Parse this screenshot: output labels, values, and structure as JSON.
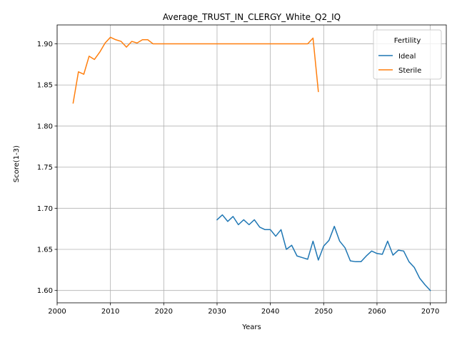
{
  "chart_data": {
    "type": "line",
    "title": "Average_TRUST_IN_CLERGY_White_Q2_IQ",
    "xlabel": "Years",
    "ylabel": "Score(1-3)",
    "xlim": [
      2000,
      2073
    ],
    "ylim": [
      1.585,
      1.923
    ],
    "x_ticks": [
      2000,
      2010,
      2020,
      2030,
      2040,
      2050,
      2060,
      2070
    ],
    "x_tick_labels": [
      "2000",
      "2010",
      "2020",
      "2030",
      "2040",
      "2050",
      "2060",
      "2070"
    ],
    "y_ticks": [
      1.6,
      1.65,
      1.7,
      1.75,
      1.8,
      1.85,
      1.9
    ],
    "y_tick_labels": [
      "1.60",
      "1.65",
      "1.70",
      "1.75",
      "1.80",
      "1.85",
      "1.90"
    ],
    "grid": true,
    "legend": {
      "title": "Fertility",
      "placement": "top-right"
    },
    "series": [
      {
        "name": "Ideal",
        "color": "#1f77b4",
        "x": [
          2030,
          2031,
          2032,
          2033,
          2034,
          2035,
          2036,
          2037,
          2038,
          2039,
          2040,
          2041,
          2042,
          2043,
          2044,
          2045,
          2046,
          2047,
          2048,
          2049,
          2050,
          2051,
          2052,
          2053,
          2054,
          2055,
          2056,
          2057,
          2058,
          2059,
          2060,
          2061,
          2062,
          2063,
          2064,
          2065,
          2066,
          2067,
          2068,
          2069,
          2070
        ],
        "values": [
          1.686,
          1.692,
          1.684,
          1.69,
          1.68,
          1.686,
          1.68,
          1.686,
          1.677,
          1.674,
          1.674,
          1.666,
          1.674,
          1.65,
          1.655,
          1.642,
          1.64,
          1.638,
          1.66,
          1.637,
          1.654,
          1.661,
          1.678,
          1.66,
          1.652,
          1.636,
          1.635,
          1.635,
          1.642,
          1.648,
          1.645,
          1.644,
          1.66,
          1.643,
          1.649,
          1.648,
          1.635,
          1.628,
          1.615,
          1.607,
          1.6
        ]
      },
      {
        "name": "Sterile",
        "color": "#ff7f0e",
        "x": [
          2003,
          2004,
          2005,
          2006,
          2007,
          2008,
          2009,
          2010,
          2011,
          2012,
          2013,
          2014,
          2015,
          2016,
          2017,
          2018,
          2019,
          2020,
          2021,
          2022,
          2023,
          2024,
          2025,
          2026,
          2027,
          2028,
          2029,
          2030,
          2031,
          2032,
          2033,
          2034,
          2035,
          2036,
          2037,
          2038,
          2039,
          2040,
          2041,
          2042,
          2043,
          2044,
          2045,
          2046,
          2047,
          2048,
          2049
        ],
        "values": [
          1.828,
          1.866,
          1.863,
          1.885,
          1.881,
          1.89,
          1.901,
          1.908,
          1.905,
          1.903,
          1.896,
          1.903,
          1.901,
          1.905,
          1.905,
          1.9,
          1.9,
          1.9,
          1.9,
          1.9,
          1.9,
          1.9,
          1.9,
          1.9,
          1.9,
          1.9,
          1.9,
          1.9,
          1.9,
          1.9,
          1.9,
          1.9,
          1.9,
          1.9,
          1.9,
          1.9,
          1.9,
          1.9,
          1.9,
          1.9,
          1.9,
          1.9,
          1.9,
          1.9,
          1.9,
          1.907,
          1.842
        ]
      }
    ]
  }
}
